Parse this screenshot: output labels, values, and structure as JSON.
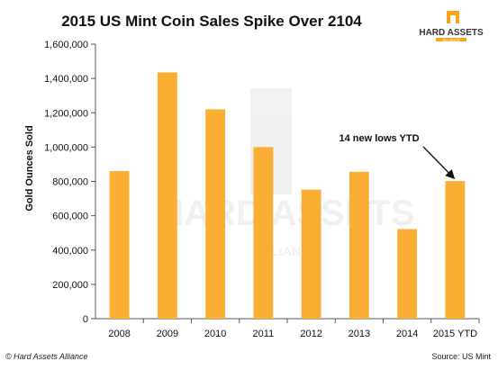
{
  "chart_data": {
    "type": "bar",
    "title": "2015 US Mint Coin Sales Spike Over 2104",
    "xlabel": "",
    "ylabel": "Gold Ounces Sold",
    "categories": [
      "2008",
      "2009",
      "2010",
      "2011",
      "2012",
      "2013",
      "2014",
      "2015 YTD"
    ],
    "values": [
      860000,
      1435000,
      1220000,
      1000000,
      752000,
      856000,
      522000,
      802000
    ],
    "ylim": [
      0,
      1600000
    ],
    "yticks": [
      0,
      200000,
      400000,
      600000,
      800000,
      1000000,
      1200000,
      1400000,
      1600000
    ],
    "ytick_labels": [
      "0",
      "200,000",
      "400,000",
      "600,000",
      "800,000",
      "1,000,000",
      "1,200,000",
      "1,400,000",
      "1,600,000"
    ],
    "grid": false,
    "bar_color": "#FBAE34",
    "annotation": {
      "text": "14 new lows YTD",
      "target_category": "2015 YTD"
    }
  },
  "logo": {
    "text": "HARD ASSETS",
    "subtext": "ALLIANCE",
    "color": "#F7A51D"
  },
  "watermark": {
    "text": "HARD ASSETS",
    "subtext": "ALLIANCE"
  },
  "footer": {
    "left": "© Hard Assets Alliance",
    "right": "Source: US Mint"
  }
}
